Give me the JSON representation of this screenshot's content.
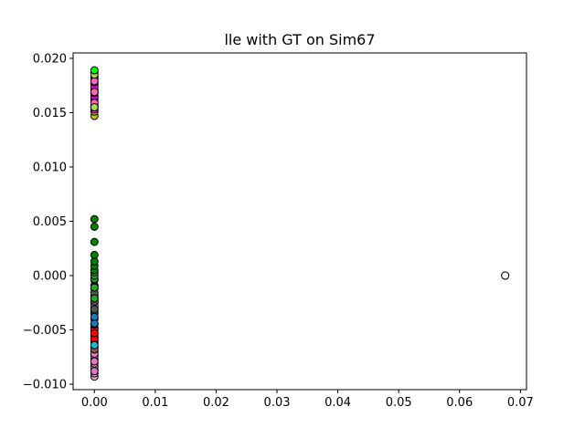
{
  "chart_data": {
    "type": "scatter",
    "title": "lle with GT on Sim67",
    "xlabel": "",
    "ylabel": "",
    "xlim": [
      -0.0035,
      0.071
    ],
    "ylim": [
      -0.0105,
      0.0205
    ],
    "xticks": [
      0.0,
      0.01,
      0.02,
      0.03,
      0.04,
      0.05,
      0.06,
      0.07
    ],
    "xtick_labels": [
      "0.00",
      "0.01",
      "0.02",
      "0.03",
      "0.04",
      "0.05",
      "0.06",
      "0.07"
    ],
    "yticks": [
      -0.01,
      -0.005,
      0.0,
      0.005,
      0.01,
      0.015,
      0.02
    ],
    "ytick_labels": [
      "−0.010",
      "−0.005",
      "0.000",
      "0.005",
      "0.010",
      "0.015",
      "0.020"
    ],
    "grid": false,
    "legend": "none",
    "series": [
      {
        "color": "#f4a6d7",
        "points": [
          [
            0,
            -0.0093
          ],
          [
            0,
            -0.009
          ],
          [
            0,
            -0.0087
          ],
          [
            0,
            -0.0084
          ],
          [
            0,
            -0.0081
          ],
          [
            0,
            -0.0077
          ],
          [
            0,
            -0.0074
          ],
          [
            0,
            -0.007
          ],
          [
            0,
            -0.0066
          ],
          [
            0,
            -0.003
          ],
          [
            0,
            -0.0025
          ],
          [
            0,
            -0.002
          ]
        ]
      },
      {
        "color": "#e377c2",
        "points": [
          [
            0,
            -0.0088
          ],
          [
            0,
            -0.0079
          ],
          [
            0,
            -0.0072
          ],
          [
            0,
            -0.0035
          ],
          [
            0,
            -0.0028
          ],
          [
            0,
            -0.0018
          ],
          [
            0,
            -0.0012
          ]
        ]
      },
      {
        "color": "#8c564b",
        "points": [
          [
            0,
            -0.0068
          ],
          [
            0,
            -0.0062
          ],
          [
            0,
            -0.0057
          ],
          [
            0,
            -0.0048
          ],
          [
            0,
            -0.004
          ]
        ]
      },
      {
        "color": "#d62728",
        "points": [
          [
            0,
            -0.006
          ],
          [
            0,
            -0.0055
          ],
          [
            0,
            -0.005
          ],
          [
            0,
            -0.0045
          ]
        ]
      },
      {
        "color": "#ff0000",
        "points": [
          [
            0,
            -0.0058
          ],
          [
            0,
            -0.0053
          ]
        ]
      },
      {
        "color": "#17becf",
        "points": [
          [
            0,
            -0.0064
          ],
          [
            0,
            -0.0033
          ],
          [
            0,
            -0.0022
          ]
        ]
      },
      {
        "color": "#1f77b4",
        "points": [
          [
            0,
            -0.0044
          ],
          [
            0,
            -0.0038
          ]
        ]
      },
      {
        "color": "#555555",
        "points": [
          [
            0,
            -0.0031
          ],
          [
            0,
            -0.0024
          ],
          [
            0,
            -0.0016
          ],
          [
            0,
            -0.0009
          ],
          [
            0,
            -0.0004
          ]
        ]
      },
      {
        "color": "#2ca02c",
        "points": [
          [
            0,
            -0.0021
          ],
          [
            0,
            -0.0011
          ],
          [
            0,
            -0.0003
          ],
          [
            0,
            0.0
          ],
          [
            0,
            0.0003
          ]
        ]
      },
      {
        "color": "#008000",
        "points": [
          [
            0,
            0.0005
          ],
          [
            0,
            0.0009
          ],
          [
            0,
            0.0013
          ],
          [
            0,
            0.0019
          ],
          [
            0,
            0.0031
          ],
          [
            0,
            0.0045
          ],
          [
            0,
            0.0052
          ]
        ]
      },
      {
        "color": "#bcbd22",
        "points": [
          [
            0,
            0.0147
          ],
          [
            0,
            0.0151
          ],
          [
            0,
            0.0155
          ],
          [
            0,
            0.0163
          ],
          [
            0,
            0.0176
          ],
          [
            0,
            0.0183
          ],
          [
            0,
            0.0187
          ]
        ]
      },
      {
        "color": "#ff00ff",
        "points": [
          [
            0,
            0.0153
          ],
          [
            0,
            0.0157
          ],
          [
            0,
            0.0161
          ],
          [
            0,
            0.0165
          ],
          [
            0,
            0.0168
          ],
          [
            0,
            0.0171
          ],
          [
            0,
            0.0174
          ],
          [
            0,
            0.0178
          ],
          [
            0,
            0.0181
          ]
        ]
      },
      {
        "color": "#ff69b4",
        "points": [
          [
            0,
            0.0159
          ],
          [
            0,
            0.0169
          ],
          [
            0,
            0.0179
          ]
        ]
      },
      {
        "color": "#a6d854",
        "points": [
          [
            0,
            0.0155
          ],
          [
            0,
            0.0185
          ]
        ]
      },
      {
        "color": "#00ff00",
        "points": [
          [
            0,
            0.0189
          ]
        ]
      },
      {
        "color": "#ffe4b5",
        "points": [
          [
            0.0675,
            0.0
          ]
        ]
      },
      {
        "color": "#ffffff",
        "points": [
          [
            0.0675,
            0.0
          ]
        ]
      }
    ]
  }
}
